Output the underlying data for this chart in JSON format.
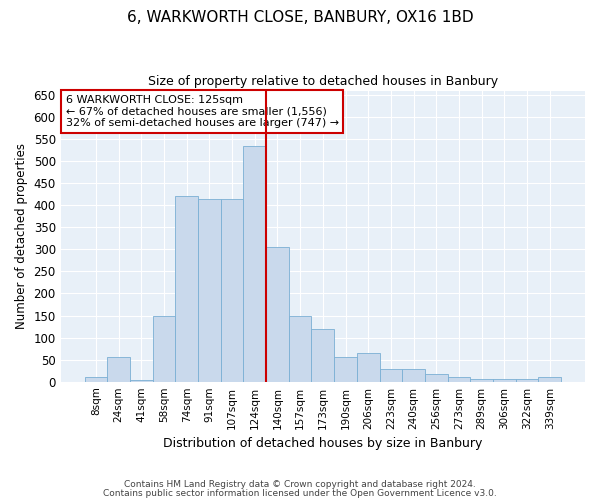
{
  "title1": "6, WARKWORTH CLOSE, BANBURY, OX16 1BD",
  "title2": "Size of property relative to detached houses in Banbury",
  "xlabel": "Distribution of detached houses by size in Banbury",
  "ylabel": "Number of detached properties",
  "categories": [
    "8sqm",
    "24sqm",
    "41sqm",
    "58sqm",
    "74sqm",
    "91sqm",
    "107sqm",
    "124sqm",
    "140sqm",
    "157sqm",
    "173sqm",
    "190sqm",
    "206sqm",
    "223sqm",
    "240sqm",
    "256sqm",
    "273sqm",
    "289sqm",
    "306sqm",
    "322sqm",
    "339sqm"
  ],
  "values": [
    10,
    55,
    3,
    150,
    420,
    415,
    415,
    535,
    305,
    150,
    120,
    55,
    65,
    28,
    28,
    18,
    10,
    5,
    5,
    5,
    10
  ],
  "bar_color": "#c9d9ec",
  "bar_edge_color": "#7aafd4",
  "vline_x_index": 7,
  "vline_color": "#cc0000",
  "annotation_title": "6 WARKWORTH CLOSE: 125sqm",
  "annotation_line1": "← 67% of detached houses are smaller (1,556)",
  "annotation_line2": "32% of semi-detached houses are larger (747) →",
  "annotation_box_facecolor": "#ffffff",
  "annotation_box_edgecolor": "#cc0000",
  "ylim": [
    0,
    660
  ],
  "yticks": [
    0,
    50,
    100,
    150,
    200,
    250,
    300,
    350,
    400,
    450,
    500,
    550,
    600,
    650
  ],
  "background_color": "#e8f0f8",
  "footer1": "Contains HM Land Registry data © Crown copyright and database right 2024.",
  "footer2": "Contains public sector information licensed under the Open Government Licence v3.0."
}
